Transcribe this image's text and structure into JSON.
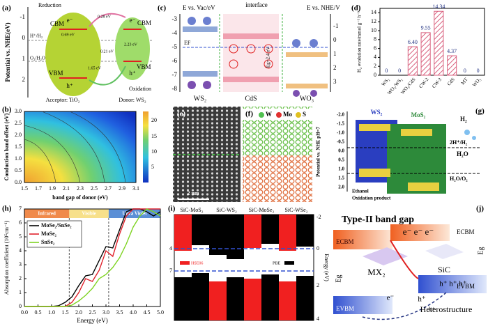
{
  "chart_data": [
    {
      "type": "bar",
      "label": "(d)",
      "y_label": "H₂ evolution rate/mmol g⁻¹ h⁻¹",
      "categories": [
        "WS₂",
        "WO₃/WS₂",
        "WO₃/CdS",
        "CW-2",
        "CW-3",
        "CdS",
        "MT",
        "WO₃"
      ],
      "values": [
        0,
        0,
        6.4,
        9.55,
        14.34,
        4.37,
        0,
        0
      ],
      "value_labels": [
        "0",
        "0",
        "6.40",
        "9.55",
        "14.34",
        "4.37",
        "0",
        "0"
      ],
      "color": "#d9607e",
      "ylim": [
        0,
        15
      ],
      "yticks": [
        0,
        2,
        4,
        6,
        8,
        10,
        12,
        14
      ]
    },
    {
      "type": "line",
      "label": "(h)",
      "x_label": "Energy (eV)",
      "y_label": "Absorption coefficient (10⁵cm⁻¹)",
      "x": [
        0,
        0.25,
        0.5,
        0.75,
        1,
        1.25,
        1.5,
        1.75,
        2,
        2.25,
        2.5,
        2.75,
        3,
        3.25,
        3.5,
        3.75,
        4,
        4.25,
        4.5,
        4.75,
        5
      ],
      "series": [
        {
          "name": "MoSe₂/SnSe₂",
          "color": "#000000",
          "values": [
            0,
            0,
            0,
            0,
            0,
            0.05,
            0.3,
            0.7,
            1.5,
            2.2,
            2.3,
            3.3,
            4.3,
            4.2,
            5.5,
            6.8,
            7,
            7,
            6.8,
            6.5,
            6.8
          ]
        },
        {
          "name": "MoSe₂",
          "color": "#e0202a",
          "values": [
            0,
            0,
            0,
            0,
            0,
            0,
            0,
            0.3,
            1.0,
            2.0,
            1.8,
            2.6,
            4.0,
            3.6,
            5.2,
            6.5,
            7,
            7,
            7,
            7,
            7
          ]
        },
        {
          "name": "SnSe₂",
          "color": "#7ed321",
          "values": [
            0,
            0,
            0,
            0,
            0,
            0,
            0,
            0.1,
            0.4,
            0.8,
            1.3,
            2.0,
            2.3,
            2.8,
            3.5,
            4.5,
            5.7,
            6.5,
            7,
            6.8,
            6.5
          ]
        }
      ],
      "xlim": [
        0,
        5
      ],
      "xticks": [
        {
          "value": 0,
          "label": "0.0"
        },
        {
          "value": 0.5,
          "label": "0.5"
        },
        {
          "value": 1,
          "label": "1.0"
        },
        {
          "value": 1.5,
          "label": "1.5"
        },
        {
          "value": 2,
          "label": "2.0"
        },
        {
          "value": 2.5,
          "label": "2.5"
        },
        {
          "value": 3,
          "label": "3.0"
        },
        {
          "value": 3.5,
          "label": "3.5"
        },
        {
          "value": 4,
          "label": "4.0"
        },
        {
          "value": 4.5,
          "label": "4.5"
        },
        {
          "value": 5,
          "label": "5.0"
        }
      ],
      "ylim": [
        0,
        7
      ],
      "yticks": [
        0,
        1,
        2,
        3,
        4,
        5,
        6,
        7
      ],
      "regions": [
        {
          "name": "Infrared",
          "range": [
            0,
            1.65
          ],
          "color": "#f08a4b"
        },
        {
          "name": "Visible",
          "range": [
            1.65,
            3.1
          ],
          "color": "#f7e08a"
        },
        {
          "name": "Ultra Violet",
          "range": [
            3.1,
            5
          ],
          "color": "#5b8fd6"
        }
      ],
      "legend": "upper left"
    }
  ],
  "panels": {
    "a": [
      "(a)",
      "Potential vs. NHE(eV)",
      "-1",
      "0",
      "1",
      "2",
      "H⁺/H₂",
      "O₂/H₂O",
      "Reduction",
      "CBM",
      "VBM",
      "CBM",
      "VBM",
      "0.69 eV",
      "0.28 eV",
      "0.21 eV",
      "1.65 eV",
      "2.23 eV",
      "e⁻",
      "h⁺",
      "e⁻",
      "h⁺",
      "Oxidation",
      "Acceptor: TiO₂",
      "Donor: WS₂"
    ],
    "c": [
      "(c)",
      "E vs. Vac/eV",
      "interface",
      "E vs. NHE/V",
      "-3",
      "-4",
      "-5",
      "-6",
      "-7",
      "-8",
      "-1",
      "0",
      "1",
      "2",
      "3",
      "WS₂",
      "CdS",
      "WO₃",
      "EF",
      "Eg=2.4 eV"
    ],
    "b": [
      "(b)",
      "Conduction band offset (eV)",
      "band gap of donor (eV)",
      "1.5",
      "1.7",
      "1.9",
      "2.1",
      "2.3",
      "2.5",
      "2.7",
      "2.9",
      "3.1",
      "0.0",
      "0.5",
      "1.0",
      "1.5",
      "2.0",
      "2.5",
      "3.0",
      "5",
      "10",
      "15",
      "20"
    ],
    "e": [
      "(e)",
      "2 nm"
    ],
    "f": [
      "(f)",
      "W",
      "Mo",
      "S"
    ],
    "g": [
      "(g)",
      "WS₂",
      "MoS₂",
      "H₂",
      "H₂O",
      "2H⁺/H₂",
      "H₂O/O₂",
      "Ethanol",
      "Oxidation product",
      "Potential vs. NHE pH=7",
      "-2.0",
      "-1.5",
      "-1.0",
      "-0.5",
      "0.0",
      "0.5",
      "1.0",
      "1.5",
      "2.0"
    ],
    "i": [
      "(i)",
      "SiC-MoS₂",
      "SiC-WS₂",
      "SiC-MoSe₂",
      "SiC-WSe₂",
      "HSE06",
      "PBE",
      "Energy (eV)",
      "-2",
      "0",
      "2",
      "4",
      "4",
      "7"
    ],
    "j": [
      "(j)",
      "Type-II band gap",
      "MX₂",
      "SiC",
      "Heterostructure",
      "ECBM",
      "EVBM",
      "ECBM",
      "EVBM",
      "e⁻ e⁻ e⁻",
      "e⁻",
      "h⁺",
      "h⁺ h⁺ h⁺",
      "h⁺",
      "Eg",
      "Eg"
    ]
  }
}
